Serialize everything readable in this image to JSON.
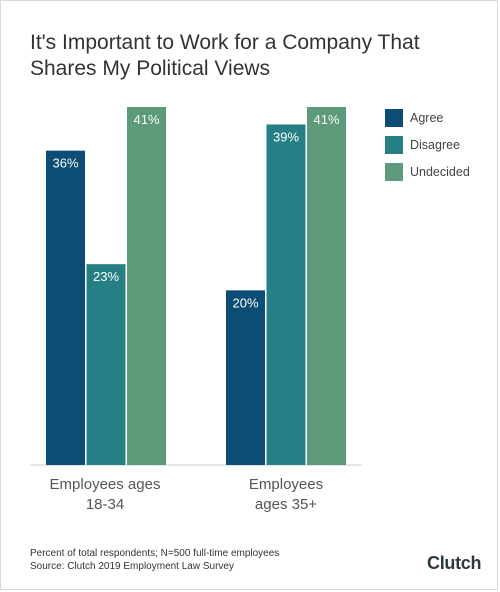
{
  "chart_data": {
    "type": "bar",
    "title": "It's Important to Work for a Company That Shares My Political Views",
    "categories": [
      "Employees ages 18-34",
      "Employees ages 35+"
    ],
    "category_lines": [
      [
        "Employees ages",
        "18-34"
      ],
      [
        "Employees",
        "ages 35+"
      ]
    ],
    "series": [
      {
        "name": "Agree",
        "values": [
          36,
          20
        ],
        "labels": [
          "36%",
          "20%"
        ],
        "color": "#0b4d74"
      },
      {
        "name": "Disagree",
        "values": [
          23,
          39
        ],
        "labels": [
          "23%",
          "39%"
        ],
        "color": "#267f85"
      },
      {
        "name": "Undecided",
        "values": [
          41,
          41
        ],
        "labels": [
          "41%",
          "41%"
        ],
        "color": "#5d9a7a"
      }
    ],
    "ylim": [
      0,
      41
    ],
    "grid": false,
    "legend_position": "right",
    "xlabel": "",
    "ylabel": ""
  },
  "footnote": {
    "line1": "Percent of total respondents; N=500 full-time employees",
    "line2": "Source: Clutch 2019 Employment Law Survey"
  },
  "brand": {
    "text": "Clutch",
    "accent_color": "#e8492f"
  }
}
